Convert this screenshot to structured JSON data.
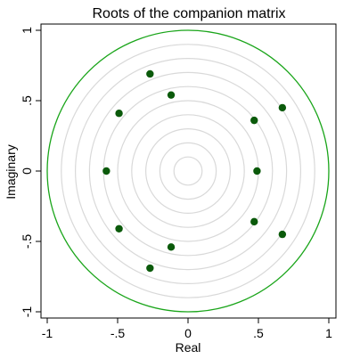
{
  "chart_data": {
    "type": "scatter",
    "title": "Roots of the companion matrix",
    "xlabel": "Real",
    "ylabel": "Imaginary",
    "xlim": [
      -1,
      1
    ],
    "ylim": [
      -1,
      1
    ],
    "x_ticks": [
      {
        "value": -1,
        "label": "-1"
      },
      {
        "value": -0.5,
        "label": "-.5"
      },
      {
        "value": 0,
        "label": "0"
      },
      {
        "value": 0.5,
        "label": ".5"
      },
      {
        "value": 1,
        "label": "1"
      }
    ],
    "y_ticks": [
      {
        "value": -1,
        "label": "-1"
      },
      {
        "value": -0.5,
        "label": "-.5"
      },
      {
        "value": 0,
        "label": "0"
      },
      {
        "value": 0.5,
        "label": ".5"
      },
      {
        "value": 1,
        "label": "1"
      }
    ],
    "grid": "concentric-circles",
    "grid_circle_radii": [
      0.1,
      0.2,
      0.3,
      0.4,
      0.5,
      0.6,
      0.7,
      0.8,
      0.9
    ],
    "unit_circle_radius": 1,
    "points": [
      {
        "x": -0.27,
        "y": 0.69
      },
      {
        "x": -0.27,
        "y": -0.69
      },
      {
        "x": -0.12,
        "y": 0.54
      },
      {
        "x": -0.12,
        "y": -0.54
      },
      {
        "x": -0.49,
        "y": 0.41
      },
      {
        "x": -0.49,
        "y": -0.41
      },
      {
        "x": -0.58,
        "y": 0.0
      },
      {
        "x": 0.47,
        "y": 0.36
      },
      {
        "x": 0.47,
        "y": -0.36
      },
      {
        "x": 0.49,
        "y": 0.0
      },
      {
        "x": 0.67,
        "y": 0.45
      },
      {
        "x": 0.67,
        "y": -0.45
      }
    ],
    "colors": {
      "points": "#0b5a0b",
      "unit_circle": "#1aa51a",
      "grid": "#d9d9d9",
      "frame": "#000000"
    }
  }
}
